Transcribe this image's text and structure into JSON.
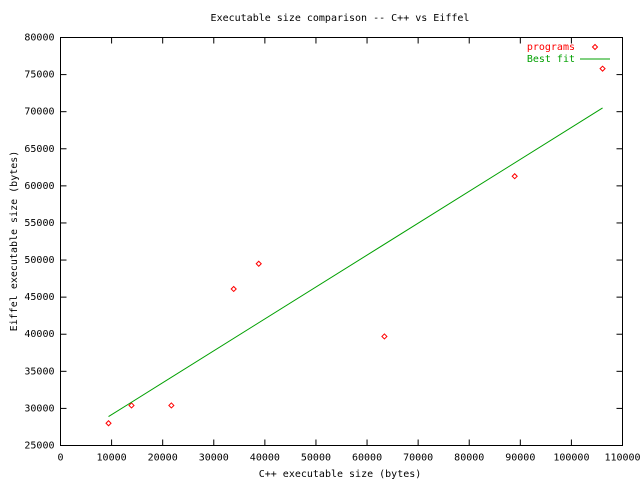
{
  "chart_data": {
    "type": "scatter",
    "title": "Executable size comparison -- C++ vs Eiffel",
    "x_label": "C++ executable size (bytes)",
    "y_label": "Eiffel executable size (bytes)",
    "series": [
      {
        "name": "programs",
        "color": "#ff0000",
        "style": "points",
        "x": [
          9400,
          13900,
          21700,
          33900,
          38800,
          63400,
          88900,
          106100
        ],
        "values": [
          28000,
          30400,
          30400,
          46100,
          49500,
          39700,
          61300,
          75800
        ]
      },
      {
        "name": "Best fit",
        "color": "#00a000",
        "style": "lines",
        "x": [
          9400,
          106100
        ],
        "values": [
          28900,
          70500
        ]
      }
    ],
    "xlim": [
      0,
      110000
    ],
    "xticks": [
      0,
      10000,
      20000,
      30000,
      40000,
      50000,
      60000,
      70000,
      80000,
      90000,
      100000,
      110000
    ],
    "ylim": [
      25000,
      80000
    ],
    "yticks": [
      25000,
      30000,
      35000,
      40000,
      45000,
      50000,
      55000,
      60000,
      65000,
      70000,
      75000,
      80000
    ],
    "grid": false,
    "legend": "top-right"
  }
}
